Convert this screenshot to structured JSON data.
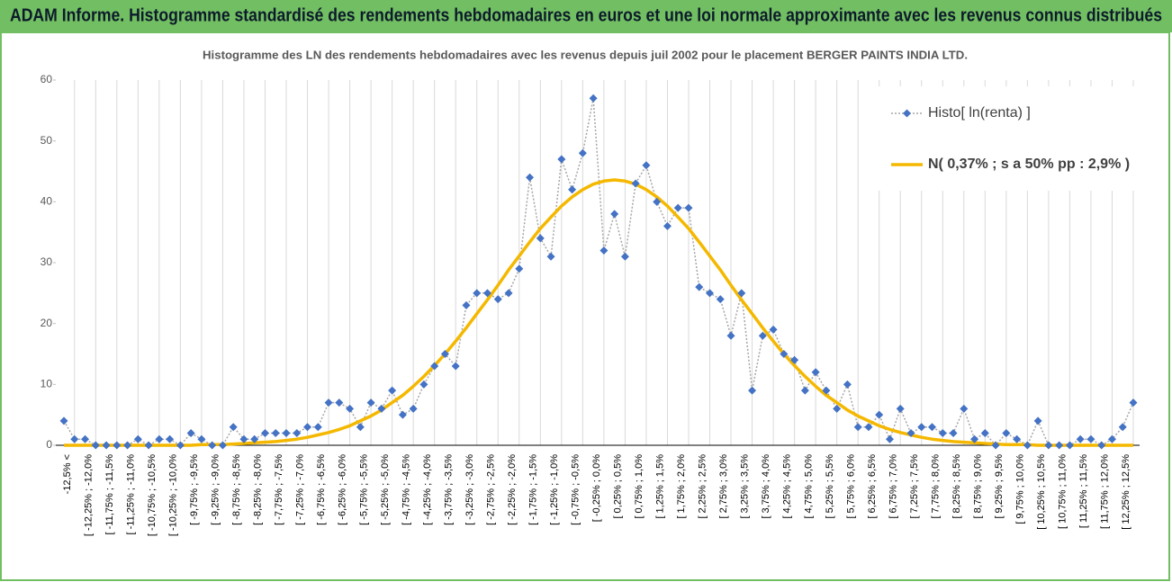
{
  "chart_data": {
    "type": "line",
    "title": "ADAM Informe. Histogramme standardisé des rendements hebdomadaires en euros et une loi normale approximante avec les revenus connus distribués",
    "subtitle": "Histogramme des LN des rendements hebdomadaires avec les revenus depuis juil 2002 pour le placement BERGER PAINTS INDIA LTD.",
    "categories": [
      "-12,5% <",
      null,
      "[ -12,25% ; -12,0%",
      null,
      "[ -11,75% ; -11,5%",
      null,
      "[ -11,25% ; -11,0%",
      null,
      "[ -10,75% ; -10,5%",
      null,
      "[ -10,25% ; -10,0%",
      null,
      "[ -9,75% ; -9,5%",
      null,
      "[ -9,25% ; -9,0%",
      null,
      "[ -8,75% ; -8,5%",
      null,
      "[ -8,25% ; -8,0%",
      null,
      "[ -7,75% ; -7,5%",
      null,
      "[ -7,25% ; -7,0%",
      null,
      "[ -6,75% ; -6,5%",
      null,
      "[ -6,25% ; -6,0%",
      null,
      "[ -5,75% ; -5,5%",
      null,
      "[ -5,25% ; -5,0%",
      null,
      "[ -4,75% ; -4,5%",
      null,
      "[ -4,25% ; -4,0%",
      null,
      "[ -3,75% ; -3,5%",
      null,
      "[ -3,25% ; -3,0%",
      null,
      "[ -2,75% ; -2,5%",
      null,
      "[ -2,25% ; -2,0%",
      null,
      "[ -1,75% ; -1,5%",
      null,
      "[ -1,25% ; -1,0%",
      null,
      "[ -0,75% ; -0,5%",
      null,
      "[ -0,25% ; 0,0%",
      null,
      "[ 0,25% ; 0,5%",
      null,
      "[ 0,75% ; 1,0%",
      null,
      "[ 1,25% ; 1,5%",
      null,
      "[ 1,75% ; 2,0%",
      null,
      "[ 2,25% ; 2,5%",
      null,
      "[ 2,75% ; 3,0%",
      null,
      "[ 3,25% ; 3,5%",
      null,
      "[ 3,75% ; 4,0%",
      null,
      "[ 4,25% ; 4,5%",
      null,
      "[ 4,75% ; 5,0%",
      null,
      "[ 5,25% ; 5,5%",
      null,
      "[ 5,75% ; 6,0%",
      null,
      "[ 6,25% ; 6,5%",
      null,
      "[ 6,75% ; 7,0%",
      null,
      "[ 7,25% ; 7,5%",
      null,
      "[ 7,75% ; 8,0%",
      null,
      "[ 8,25% ; 8,5%",
      null,
      "[ 8,75% ; 9,0%",
      null,
      "[ 9,25% ; 9,5%",
      null,
      "[ 9,75% ; 10,0%",
      null,
      "[ 10,25% ; 10,5%",
      null,
      "[ 10,75% ; 11,0%",
      null,
      "[ 11,25% ; 11,5%",
      null,
      "[ 11,75% ; 12,0%",
      null,
      "[ 12,25% ; 12,5%",
      null
    ],
    "series": [
      {
        "name": "Histo[ ln(renta) ]",
        "color": "#4472c4",
        "line_color": "#a6a6a6",
        "values": [
          4,
          1,
          1,
          0,
          0,
          0,
          0,
          1,
          0,
          1,
          1,
          0,
          2,
          1,
          0,
          0,
          3,
          1,
          1,
          2,
          2,
          2,
          2,
          3,
          3,
          7,
          7,
          6,
          3,
          7,
          6,
          9,
          5,
          6,
          10,
          13,
          15,
          13,
          23,
          25,
          25,
          24,
          25,
          29,
          44,
          34,
          31,
          47,
          42,
          48,
          57,
          32,
          38,
          31,
          43,
          46,
          40,
          36,
          39,
          39,
          26,
          25,
          24,
          18,
          25,
          9,
          18,
          19,
          15,
          14,
          9,
          12,
          9,
          6,
          10,
          3,
          3,
          5,
          1,
          6,
          2,
          3,
          3,
          2,
          2,
          6,
          1,
          2,
          0,
          2,
          1,
          0,
          4,
          0,
          0,
          0,
          1,
          1,
          0,
          1,
          3,
          7
        ]
      },
      {
        "name": "N( 0,37% ; s a 50% pp : 2,9% )",
        "color": "#f5b800",
        "values": [
          0,
          0,
          0,
          0,
          0,
          0,
          0,
          0,
          0,
          0,
          0,
          0,
          0,
          0.1,
          0.1,
          0.1,
          0.2,
          0.3,
          0.4,
          0.5,
          0.6,
          0.8,
          1.0,
          1.3,
          1.7,
          2.1,
          2.6,
          3.2,
          4.0,
          4.8,
          5.8,
          7.0,
          8.2,
          9.7,
          11.3,
          13.1,
          15.0,
          17.1,
          19.3,
          21.6,
          23.9,
          26.3,
          28.8,
          31.1,
          33.4,
          35.6,
          37.5,
          39.3,
          40.8,
          42.0,
          42.9,
          43.4,
          43.6,
          43.4,
          42.9,
          42.0,
          40.8,
          39.3,
          37.5,
          35.6,
          33.4,
          31.1,
          28.8,
          26.3,
          23.9,
          21.6,
          19.3,
          17.1,
          15.0,
          13.1,
          11.3,
          9.7,
          8.2,
          7.0,
          5.8,
          4.8,
          4.0,
          3.2,
          2.6,
          2.1,
          1.7,
          1.3,
          1.0,
          0.8,
          0.6,
          0.5,
          0.4,
          0.3,
          0.2,
          0.1,
          0.1,
          0.1,
          0,
          0,
          0,
          0,
          0,
          0,
          0,
          0,
          0,
          0
        ]
      }
    ],
    "ylim": [
      0,
      60
    ],
    "yticks": [
      0,
      10,
      20,
      30,
      40,
      50,
      60
    ]
  }
}
